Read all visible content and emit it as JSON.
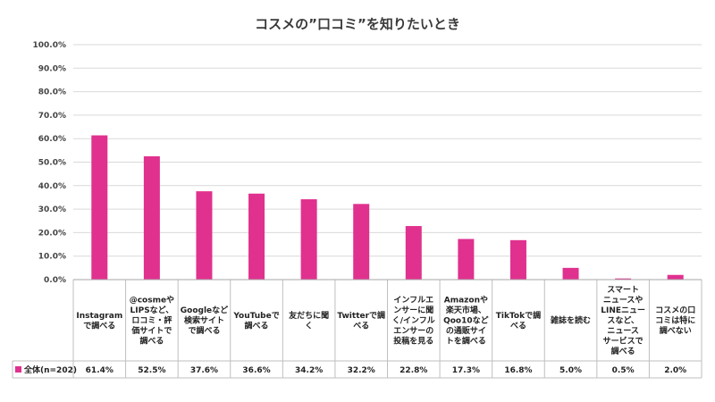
{
  "chart_data": {
    "type": "bar",
    "title": "コスメの”口コミ”を知りたいとき",
    "yticks": [
      "0.0%",
      "10.0%",
      "20.0%",
      "30.0%",
      "40.0%",
      "50.0%",
      "60.0%",
      "70.0%",
      "80.0%",
      "90.0%",
      "100.0%"
    ],
    "ylim": [
      0,
      100
    ],
    "grid": true,
    "categories": [
      [
        "Instagram",
        "で調べる"
      ],
      [
        "@cosmeや",
        "LIPSなど、",
        "ロコミ・評",
        "価サイトで",
        "調べる"
      ],
      [
        "Googleなど",
        "検索サイト",
        "で調べる"
      ],
      [
        "YouTubeで",
        "調べる"
      ],
      [
        "友だちに聞",
        "く"
      ],
      [
        "Twitterで調",
        "べる"
      ],
      [
        "インフルエ",
        "ンサーに聞",
        "く/インフル",
        "エンサーの",
        "投稿を見る"
      ],
      [
        "Amazonや",
        "楽天市場、",
        "Qoo10など",
        "の通販サイ",
        "トを調べる"
      ],
      [
        "TikTokで調",
        "べる"
      ],
      [
        "雑誌を読む"
      ],
      [
        "スマート",
        "ニュースや",
        "LINEニュー",
        "スなど、",
        "ニュース",
        "サービスで",
        "調べる"
      ],
      [
        "コスメの口",
        "コミは特に",
        "調べない"
      ]
    ],
    "series": [
      {
        "name": "全体(n=202)",
        "color": "#e0318f",
        "values": [
          61.4,
          52.5,
          37.6,
          36.6,
          34.2,
          32.2,
          22.8,
          17.3,
          16.8,
          5.0,
          0.5,
          2.0
        ],
        "labels": [
          "61.4%",
          "52.5%",
          "37.6%",
          "36.6%",
          "34.2%",
          "32.2%",
          "22.8%",
          "17.3%",
          "16.8%",
          "5.0%",
          "0.5%",
          "2.0%"
        ]
      }
    ],
    "legend": "table-left"
  }
}
